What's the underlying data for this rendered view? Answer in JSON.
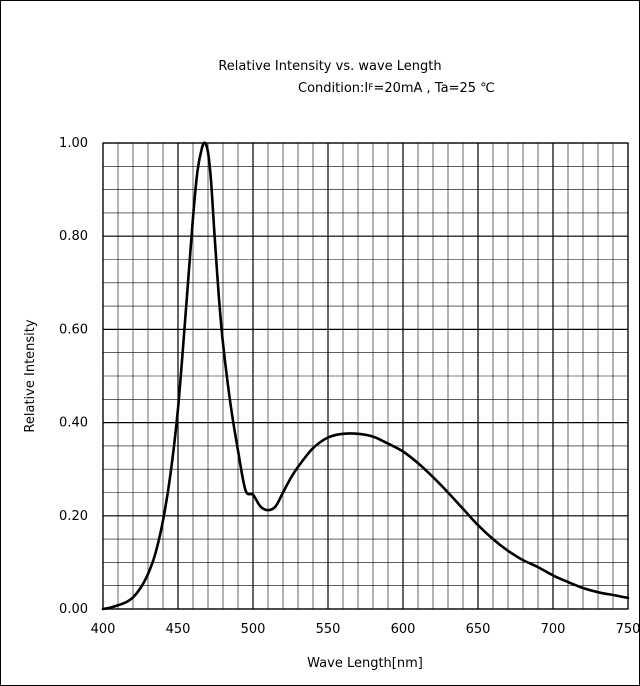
{
  "chart_data": {
    "type": "line",
    "title": "Relative Intensity vs. wave Length",
    "subtitle": "Condition:IF=20mA , Ta=25 ℃",
    "subtitle_parts": {
      "pre": "Condition:I",
      "sub": "F",
      "post": "=20mA , Ta=25 ℃"
    },
    "xlabel": "Wave Length[nm]",
    "ylabel": "Relative Intensity",
    "xlim": [
      400,
      750
    ],
    "ylim": [
      0,
      1
    ],
    "x_ticks": [
      400,
      450,
      500,
      550,
      600,
      650,
      700,
      750
    ],
    "x_tick_labels": [
      "400",
      "450",
      "500",
      "550",
      "600",
      "650",
      "700",
      "750"
    ],
    "y_ticks": [
      0,
      0.2,
      0.4,
      0.6,
      0.8,
      1.0
    ],
    "y_tick_labels": [
      "0.00",
      "0.20",
      "0.40",
      "0.60",
      "0.80",
      "1.00"
    ],
    "grid": true,
    "series": [
      {
        "x": [
          400,
          405,
          410,
          415,
          420,
          425,
          430,
          435,
          440,
          445,
          450,
          455,
          460,
          463,
          466,
          468,
          470,
          472,
          474,
          477,
          480,
          485,
          490,
          495,
          500,
          505,
          510,
          515,
          520,
          525,
          530,
          540,
          550,
          560,
          570,
          580,
          590,
          600,
          610,
          620,
          630,
          640,
          650,
          660,
          670,
          680,
          690,
          700,
          710,
          720,
          730,
          740,
          750
        ],
        "y": [
          0.0,
          0.003,
          0.008,
          0.014,
          0.025,
          0.045,
          0.075,
          0.12,
          0.19,
          0.29,
          0.43,
          0.63,
          0.84,
          0.94,
          0.99,
          1.0,
          0.98,
          0.92,
          0.82,
          0.68,
          0.57,
          0.44,
          0.34,
          0.255,
          0.245,
          0.22,
          0.212,
          0.22,
          0.25,
          0.28,
          0.305,
          0.345,
          0.368,
          0.376,
          0.376,
          0.37,
          0.355,
          0.338,
          0.313,
          0.283,
          0.25,
          0.215,
          0.18,
          0.15,
          0.125,
          0.105,
          0.09,
          0.072,
          0.058,
          0.045,
          0.036,
          0.03,
          0.024
        ]
      }
    ]
  }
}
